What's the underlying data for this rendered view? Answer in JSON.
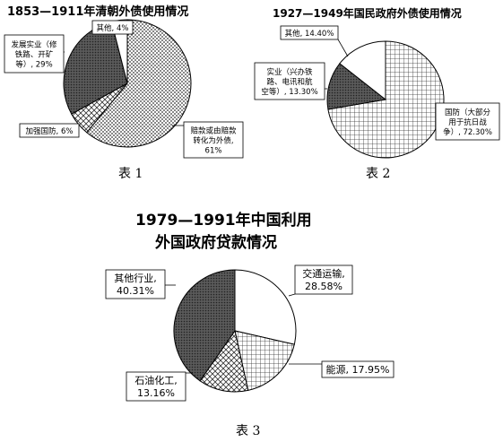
{
  "chart_data": [
    {
      "type": "pie",
      "title": "1853—1911年清朝外债使用情况",
      "caption": "表 1",
      "slices": [
        {
          "name": "赔款或由赔款转化为外债",
          "value": 61,
          "label_lines": [
            "赔款或由赔款",
            "转化为外债,",
            "61%"
          ],
          "fill": "dots"
        },
        {
          "name": "加强国防",
          "value": 6,
          "label_lines": [
            "加强国防, 6%"
          ],
          "fill": "cross"
        },
        {
          "name": "发展实业（修铁路、开矿等）",
          "value": 29,
          "label_lines": [
            "发展实业（修",
            "铁路、开矿",
            "等）, 29%"
          ],
          "fill": "dark"
        },
        {
          "name": "其他",
          "value": 4,
          "label_lines": [
            "其他, 4%"
          ],
          "fill": "white"
        }
      ]
    },
    {
      "type": "pie",
      "title": "1927—1949年国民政府外债使用情况",
      "caption": "表 2",
      "slices": [
        {
          "name": "国防（大部分用于抗日战争）",
          "value": 72.3,
          "label_lines": [
            "国防（大部分",
            "用于抗日战",
            "争）, 72.30%"
          ],
          "fill": "grid"
        },
        {
          "name": "实业（兴办铁路、电讯和航空等）",
          "value": 13.3,
          "label_lines": [
            "实业（兴办铁",
            "路、电讯和航",
            "空等）, 13.30%"
          ],
          "fill": "dark"
        },
        {
          "name": "其他",
          "value": 14.4,
          "label_lines": [
            "其他, 14.40%"
          ],
          "fill": "white"
        }
      ]
    },
    {
      "type": "pie",
      "title": [
        "1979—1991年中国利用",
        "外国政府贷款情况"
      ],
      "caption": "表 3",
      "slices": [
        {
          "name": "交通运输",
          "value": 28.58,
          "label_lines": [
            "交通运输,",
            "28.58%"
          ],
          "fill": "white"
        },
        {
          "name": "能源",
          "value": 17.95,
          "label_lines": [
            "能源, 17.95%"
          ],
          "fill": "grid"
        },
        {
          "name": "石油化工",
          "value": 13.16,
          "label_lines": [
            "石油化工,",
            "13.16%"
          ],
          "fill": "cross"
        },
        {
          "name": "其他行业",
          "value": 40.31,
          "label_lines": [
            "其他行业,",
            "40.31%"
          ],
          "fill": "dark"
        }
      ]
    }
  ]
}
